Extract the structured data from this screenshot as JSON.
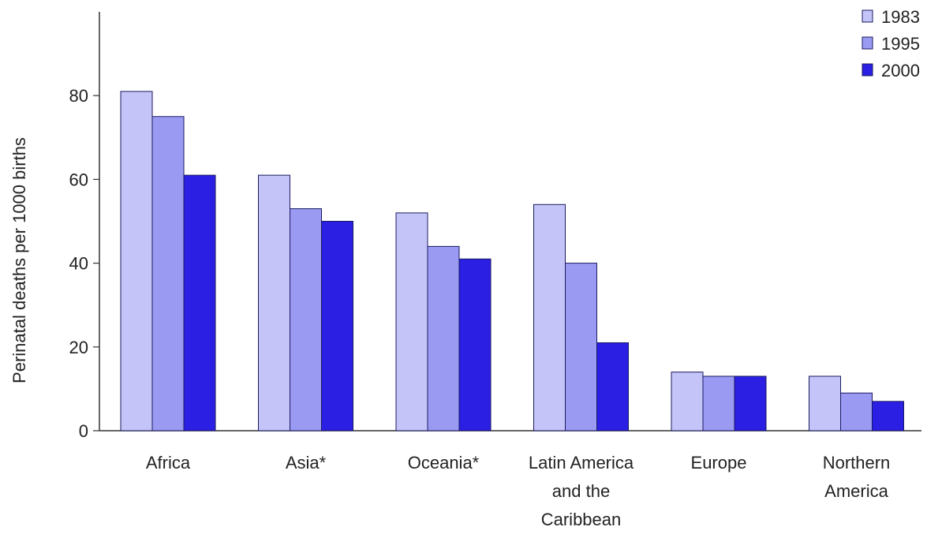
{
  "chart_data": {
    "type": "bar",
    "ylabel": "Perinatal deaths per 1000 births",
    "ylim": [
      0,
      100
    ],
    "yticks": [
      "0",
      "20",
      "40",
      "60",
      "80"
    ],
    "categories": [
      [
        "Africa"
      ],
      [
        "Asia*"
      ],
      [
        "Oceania*"
      ],
      [
        "Latin America",
        "and the",
        "Caribbean"
      ],
      [
        "Europe"
      ],
      [
        "Northern",
        "America"
      ]
    ],
    "series": [
      {
        "name": "1983",
        "color": "#c4c4f8",
        "values": [
          81,
          61,
          52,
          54,
          14,
          13
        ]
      },
      {
        "name": "1995",
        "color": "#9a9af2",
        "values": [
          75,
          53,
          44,
          40,
          13,
          9
        ]
      },
      {
        "name": "2000",
        "color": "#2a1fe2",
        "values": [
          61,
          50,
          41,
          21,
          13,
          7
        ]
      }
    ],
    "legend_position": "top-right",
    "grid": false
  }
}
